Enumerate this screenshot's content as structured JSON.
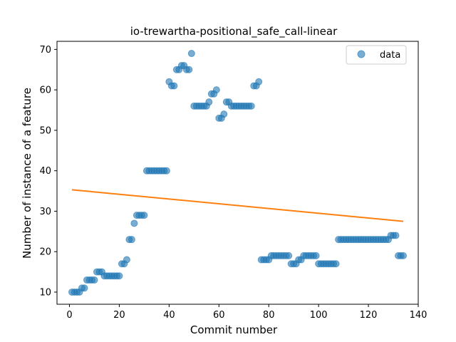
{
  "chart_data": {
    "type": "scatter",
    "title": "io-trewartha-positional_safe_call-linear",
    "xlabel": "Commit number",
    "ylabel": "Number of instance of a feature",
    "xlim": [
      -5,
      140
    ],
    "ylim": [
      7,
      72
    ],
    "xticks": [
      0,
      20,
      40,
      60,
      80,
      100,
      120,
      140
    ],
    "yticks": [
      10,
      20,
      30,
      40,
      50,
      60,
      70
    ],
    "grid": false,
    "legend_position": "top-right",
    "series": [
      {
        "name": "data",
        "kind": "scatter",
        "color": "#1f77b4",
        "x": [
          1,
          2,
          3,
          4,
          5,
          6,
          7,
          8,
          9,
          10,
          11,
          12,
          13,
          14,
          15,
          16,
          17,
          18,
          19,
          20,
          21,
          22,
          23,
          24,
          25,
          26,
          27,
          28,
          29,
          30,
          31,
          32,
          33,
          34,
          35,
          36,
          37,
          38,
          39,
          40,
          41,
          42,
          43,
          44,
          45,
          46,
          47,
          48,
          49,
          50,
          51,
          52,
          53,
          54,
          55,
          56,
          57,
          58,
          59,
          60,
          61,
          62,
          63,
          64,
          65,
          66,
          67,
          68,
          69,
          70,
          71,
          72,
          73,
          74,
          75,
          76,
          77,
          78,
          79,
          80,
          81,
          82,
          83,
          84,
          85,
          86,
          87,
          88,
          89,
          90,
          91,
          92,
          93,
          94,
          95,
          96,
          97,
          98,
          99,
          100,
          101,
          102,
          103,
          104,
          105,
          106,
          107,
          108,
          109,
          110,
          111,
          112,
          113,
          114,
          115,
          116,
          117,
          118,
          119,
          120,
          121,
          122,
          123,
          124,
          125,
          126,
          127,
          128,
          129,
          130,
          131,
          132,
          133,
          134
        ],
        "y": [
          10,
          10,
          10,
          10,
          11,
          11,
          13,
          13,
          13,
          13,
          15,
          15,
          15,
          14,
          14,
          14,
          14,
          14,
          14,
          14,
          17,
          17,
          18,
          23,
          23,
          27,
          29,
          29,
          29,
          29,
          40,
          40,
          40,
          40,
          40,
          40,
          40,
          40,
          40,
          62,
          61,
          61,
          65,
          65,
          66,
          66,
          65,
          65,
          69,
          56,
          56,
          56,
          56,
          56,
          56,
          57,
          59,
          59,
          60,
          53,
          53,
          54,
          57,
          57,
          56,
          56,
          56,
          56,
          56,
          56,
          56,
          56,
          56,
          61,
          61,
          62,
          18,
          18,
          18,
          18,
          19,
          19,
          19,
          19,
          19,
          19,
          19,
          19,
          17,
          17,
          17,
          18,
          18,
          19,
          19,
          19,
          19,
          19,
          19,
          17,
          17,
          17,
          17,
          17,
          17,
          17,
          17,
          23,
          23,
          23,
          23,
          23,
          23,
          23,
          23,
          23,
          23,
          23,
          23,
          23,
          23,
          23,
          23,
          23,
          23,
          23,
          23,
          23,
          24,
          24,
          24,
          19,
          19,
          19
        ]
      },
      {
        "name": "",
        "kind": "line",
        "color": "#ff7f0e",
        "x": [
          1,
          134
        ],
        "y": [
          35.3,
          27.5
        ]
      }
    ]
  }
}
